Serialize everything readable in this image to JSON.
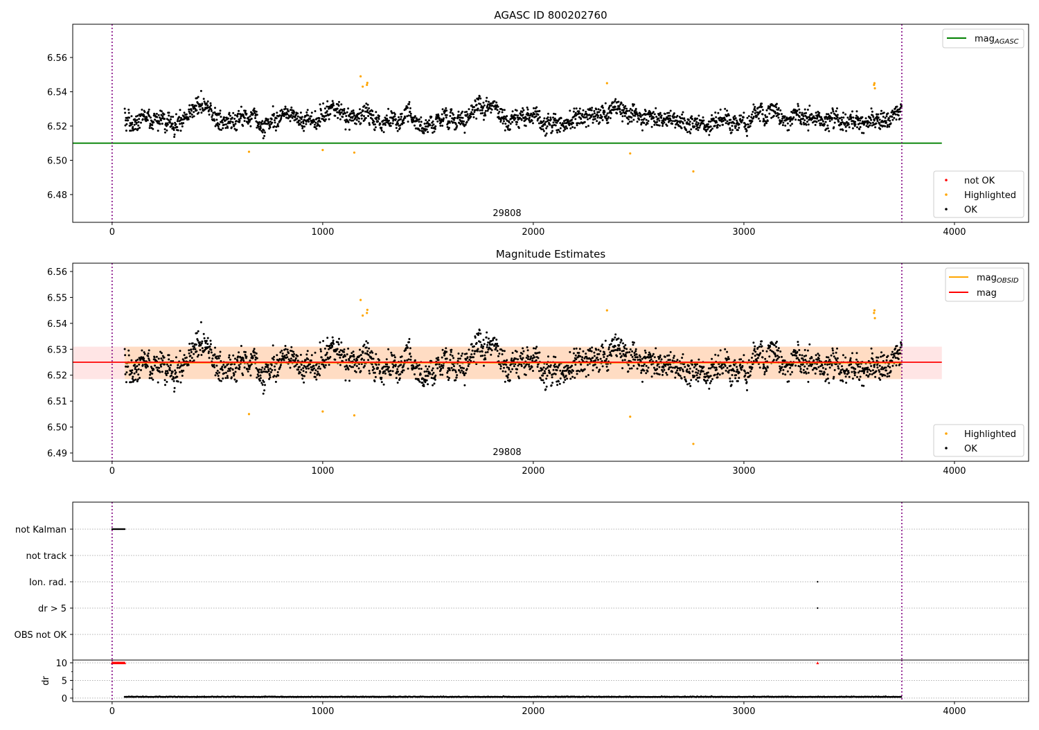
{
  "chart_data": [
    {
      "type": "scatter",
      "title": "AGASC ID 800202760",
      "xlim": [
        -187,
        4352
      ],
      "ylim": [
        6.4638,
        6.5794
      ],
      "xticks": [
        "0",
        "1000",
        "2000",
        "3000",
        "4000"
      ],
      "yticks": [
        "6.48",
        "6.50",
        "6.52",
        "6.54",
        "6.56"
      ],
      "annotation": "29808",
      "reference_line": {
        "name": "mag_AGASC",
        "label_main": "mag",
        "label_sub": "AGASC",
        "value": 6.51,
        "x_range": [
          -187,
          3940
        ],
        "color": "#008000"
      },
      "vlines": [
        0,
        3750
      ],
      "ok_points": {
        "x_range": [
          60,
          3750
        ],
        "mean": 6.525,
        "spread": 0.0055,
        "count": 2400,
        "seed": 29808
      },
      "highlighted": [
        [
          650,
          6.505
        ],
        [
          1000,
          6.506
        ],
        [
          1150,
          6.5045
        ],
        [
          1180,
          6.549
        ],
        [
          1190,
          6.543
        ],
        [
          1210,
          6.544
        ],
        [
          1212,
          6.5452
        ],
        [
          2350,
          6.545
        ],
        [
          2460,
          6.504
        ],
        [
          2760,
          6.4935
        ],
        [
          3618,
          6.544
        ],
        [
          3620,
          6.545
        ],
        [
          3622,
          6.542
        ]
      ],
      "legend_points": [
        {
          "label": "not OK",
          "color": "#ff0000"
        },
        {
          "label": "Highlighted",
          "color": "#ffa500"
        },
        {
          "label": "OK",
          "color": "#000000"
        }
      ]
    },
    {
      "type": "scatter",
      "title": "Magnitude Estimates",
      "xlim": [
        -187,
        4352
      ],
      "ylim": [
        6.4868,
        6.5632
      ],
      "xticks": [
        "0",
        "1000",
        "2000",
        "3000",
        "4000"
      ],
      "yticks": [
        "6.49",
        "6.50",
        "6.51",
        "6.52",
        "6.53",
        "6.54",
        "6.55",
        "6.56"
      ],
      "annotation": "29808",
      "mag": 6.525,
      "mag_band": [
        6.5185,
        6.531
      ],
      "mag_obsid": 6.5248,
      "legend_lines": [
        {
          "label_main": "mag",
          "label_sub": "OBSID",
          "color": "#ffa500"
        },
        {
          "label_main": "mag",
          "label_sub": "",
          "color": "#ff0000"
        }
      ],
      "legend_points": [
        {
          "label": "Highlighted",
          "color": "#ffa500"
        },
        {
          "label": "OK",
          "color": "#000000"
        }
      ]
    },
    {
      "type": "scatter",
      "title": "",
      "categories": [
        "not Kalman",
        "not track",
        "Ion. rad.",
        "dr > 5",
        "OBS not OK"
      ],
      "flags": [
        {
          "category": "not Kalman",
          "x_range": [
            0,
            60
          ]
        },
        {
          "category": "Ion. rad.",
          "x": 3350
        },
        {
          "category": "dr > 5",
          "x": 3350
        }
      ]
    },
    {
      "type": "scatter",
      "ylabel": "dr",
      "ylim": [
        -1,
        10.78
      ],
      "yticks": [
        "0",
        "5",
        "10"
      ],
      "xticks": [
        "0",
        "1000",
        "2000",
        "3000",
        "4000"
      ],
      "clipped_points": {
        "x_range": [
          0,
          60
        ],
        "value": 10,
        "extra_x": 3350,
        "color": "#ff0000"
      },
      "dr_points": {
        "x_range": [
          60,
          3750
        ],
        "mean": 0.3,
        "spread": 0.1
      }
    }
  ]
}
